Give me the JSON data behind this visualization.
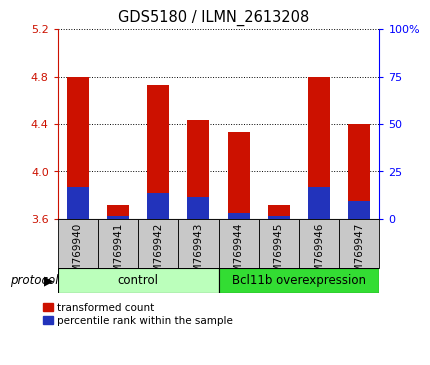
{
  "title": "GDS5180 / ILMN_2613208",
  "samples": [
    "GSM769940",
    "GSM769941",
    "GSM769942",
    "GSM769943",
    "GSM769944",
    "GSM769945",
    "GSM769946",
    "GSM769947"
  ],
  "red_values": [
    4.8,
    3.72,
    4.73,
    4.43,
    4.33,
    3.72,
    4.8,
    4.4
  ],
  "blue_values": [
    3.87,
    3.62,
    3.82,
    3.78,
    3.65,
    3.62,
    3.87,
    3.75
  ],
  "bar_width": 0.55,
  "ylim": [
    3.6,
    5.2
  ],
  "yticks": [
    3.6,
    4.0,
    4.4,
    4.8,
    5.2
  ],
  "y2labels": [
    "0",
    "25",
    "50",
    "75",
    "100%"
  ],
  "red_color": "#cc1100",
  "blue_color": "#2233bb",
  "bar_bg_color": "#c8c8c8",
  "control_bg": "#bbffbb",
  "overexp_bg": "#33dd33",
  "control_label": "control",
  "overexp_label": "Bcl11b overexpression",
  "protocol_label": "protocol",
  "legend_red": "transformed count",
  "legend_blue": "percentile rank within the sample"
}
